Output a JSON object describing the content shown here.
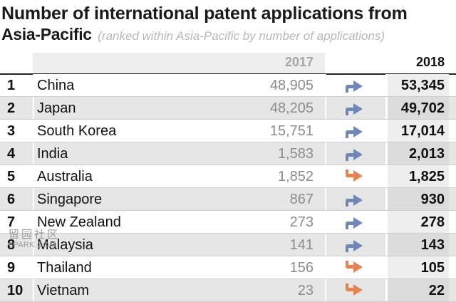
{
  "title": {
    "line1": "Number of international patent applications from",
    "line2": "Asia-Pacific",
    "subtitle": "(ranked within Asia-Pacific by number of applications)"
  },
  "columns": {
    "year_a": "2017",
    "year_b": "2018"
  },
  "colors": {
    "up_arrow": "#7089b4",
    "down_arrow": "#e0855a"
  },
  "rows": [
    {
      "rank": "1",
      "country": "China",
      "v2017": "48,905",
      "v2018": "53,345",
      "trend": "up"
    },
    {
      "rank": "2",
      "country": "Japan",
      "v2017": "48,205",
      "v2018": "49,702",
      "trend": "up"
    },
    {
      "rank": "3",
      "country": "South Korea",
      "v2017": "15,751",
      "v2018": "17,014",
      "trend": "up"
    },
    {
      "rank": "4",
      "country": "India",
      "v2017": "1,583",
      "v2018": "2,013",
      "trend": "up"
    },
    {
      "rank": "5",
      "country": "Australia",
      "v2017": "1,852",
      "v2018": "1,825",
      "trend": "down"
    },
    {
      "rank": "6",
      "country": "Singapore",
      "v2017": "867",
      "v2018": "930",
      "trend": "up"
    },
    {
      "rank": "7",
      "country": "New Zealand",
      "v2017": "273",
      "v2018": "278",
      "trend": "up"
    },
    {
      "rank": "8",
      "country": "Malaysia",
      "v2017": "141",
      "v2018": "143",
      "trend": "up"
    },
    {
      "rank": "9",
      "country": "Thailand",
      "v2017": "156",
      "v2018": "105",
      "trend": "down"
    },
    {
      "rank": "10",
      "country": "Vietnam",
      "v2017": "23",
      "v2018": "22",
      "trend": "down"
    }
  ],
  "watermark": {
    "glyphs": "留园社区",
    "site": "6PARK.COM"
  }
}
